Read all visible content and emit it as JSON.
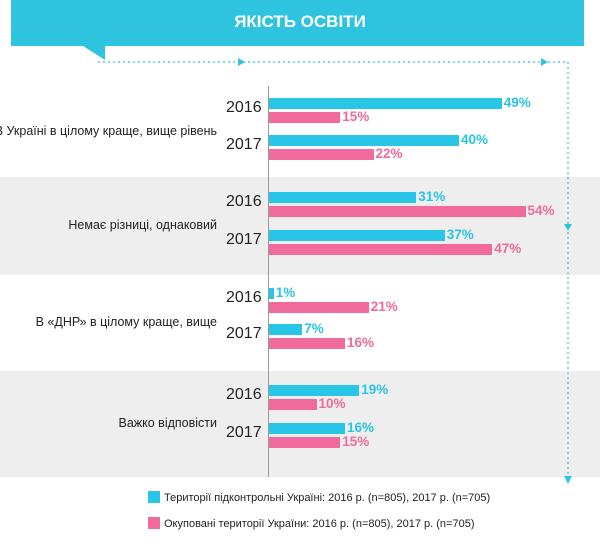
{
  "title": "ЯКІСТЬ ОСВІТИ",
  "colors": {
    "accent": "#2ec3df",
    "controlled": "#29c5e6",
    "occupied": "#f06a9b",
    "band": "#eeeeee"
  },
  "chart_data": {
    "type": "bar",
    "orientation": "horizontal",
    "value_suffix": "%",
    "xlim": [
      0,
      55
    ],
    "categories": [
      {
        "label": "В Україні в цілому краще, вище рівень",
        "rows": [
          {
            "year": "2016",
            "controlled": 49,
            "occupied": 15
          },
          {
            "year": "2017",
            "controlled": 40,
            "occupied": 22
          }
        ]
      },
      {
        "label": "Немає різниці, однаковий",
        "rows": [
          {
            "year": "2016",
            "controlled": 31,
            "occupied": 54
          },
          {
            "year": "2017",
            "controlled": 37,
            "occupied": 47
          }
        ]
      },
      {
        "label": "В «ДНР» в цілому краще, вище",
        "rows": [
          {
            "year": "2016",
            "controlled": 1,
            "occupied": 21
          },
          {
            "year": "2017",
            "controlled": 7,
            "occupied": 16
          }
        ]
      },
      {
        "label": "Важко відповісти",
        "rows": [
          {
            "year": "2016",
            "controlled": 19,
            "occupied": 10
          },
          {
            "year": "2017",
            "controlled": 16,
            "occupied": 15
          }
        ]
      }
    ],
    "series": [
      {
        "key": "controlled",
        "name": "Території підконтрольні Україні:  2016 р. (n=805), 2017 р. (n=705)"
      },
      {
        "key": "occupied",
        "name": "Окуповані території України: 2016 р. (n=805), 2017 р. (n=705)"
      }
    ],
    "legend_position": "bottom"
  }
}
